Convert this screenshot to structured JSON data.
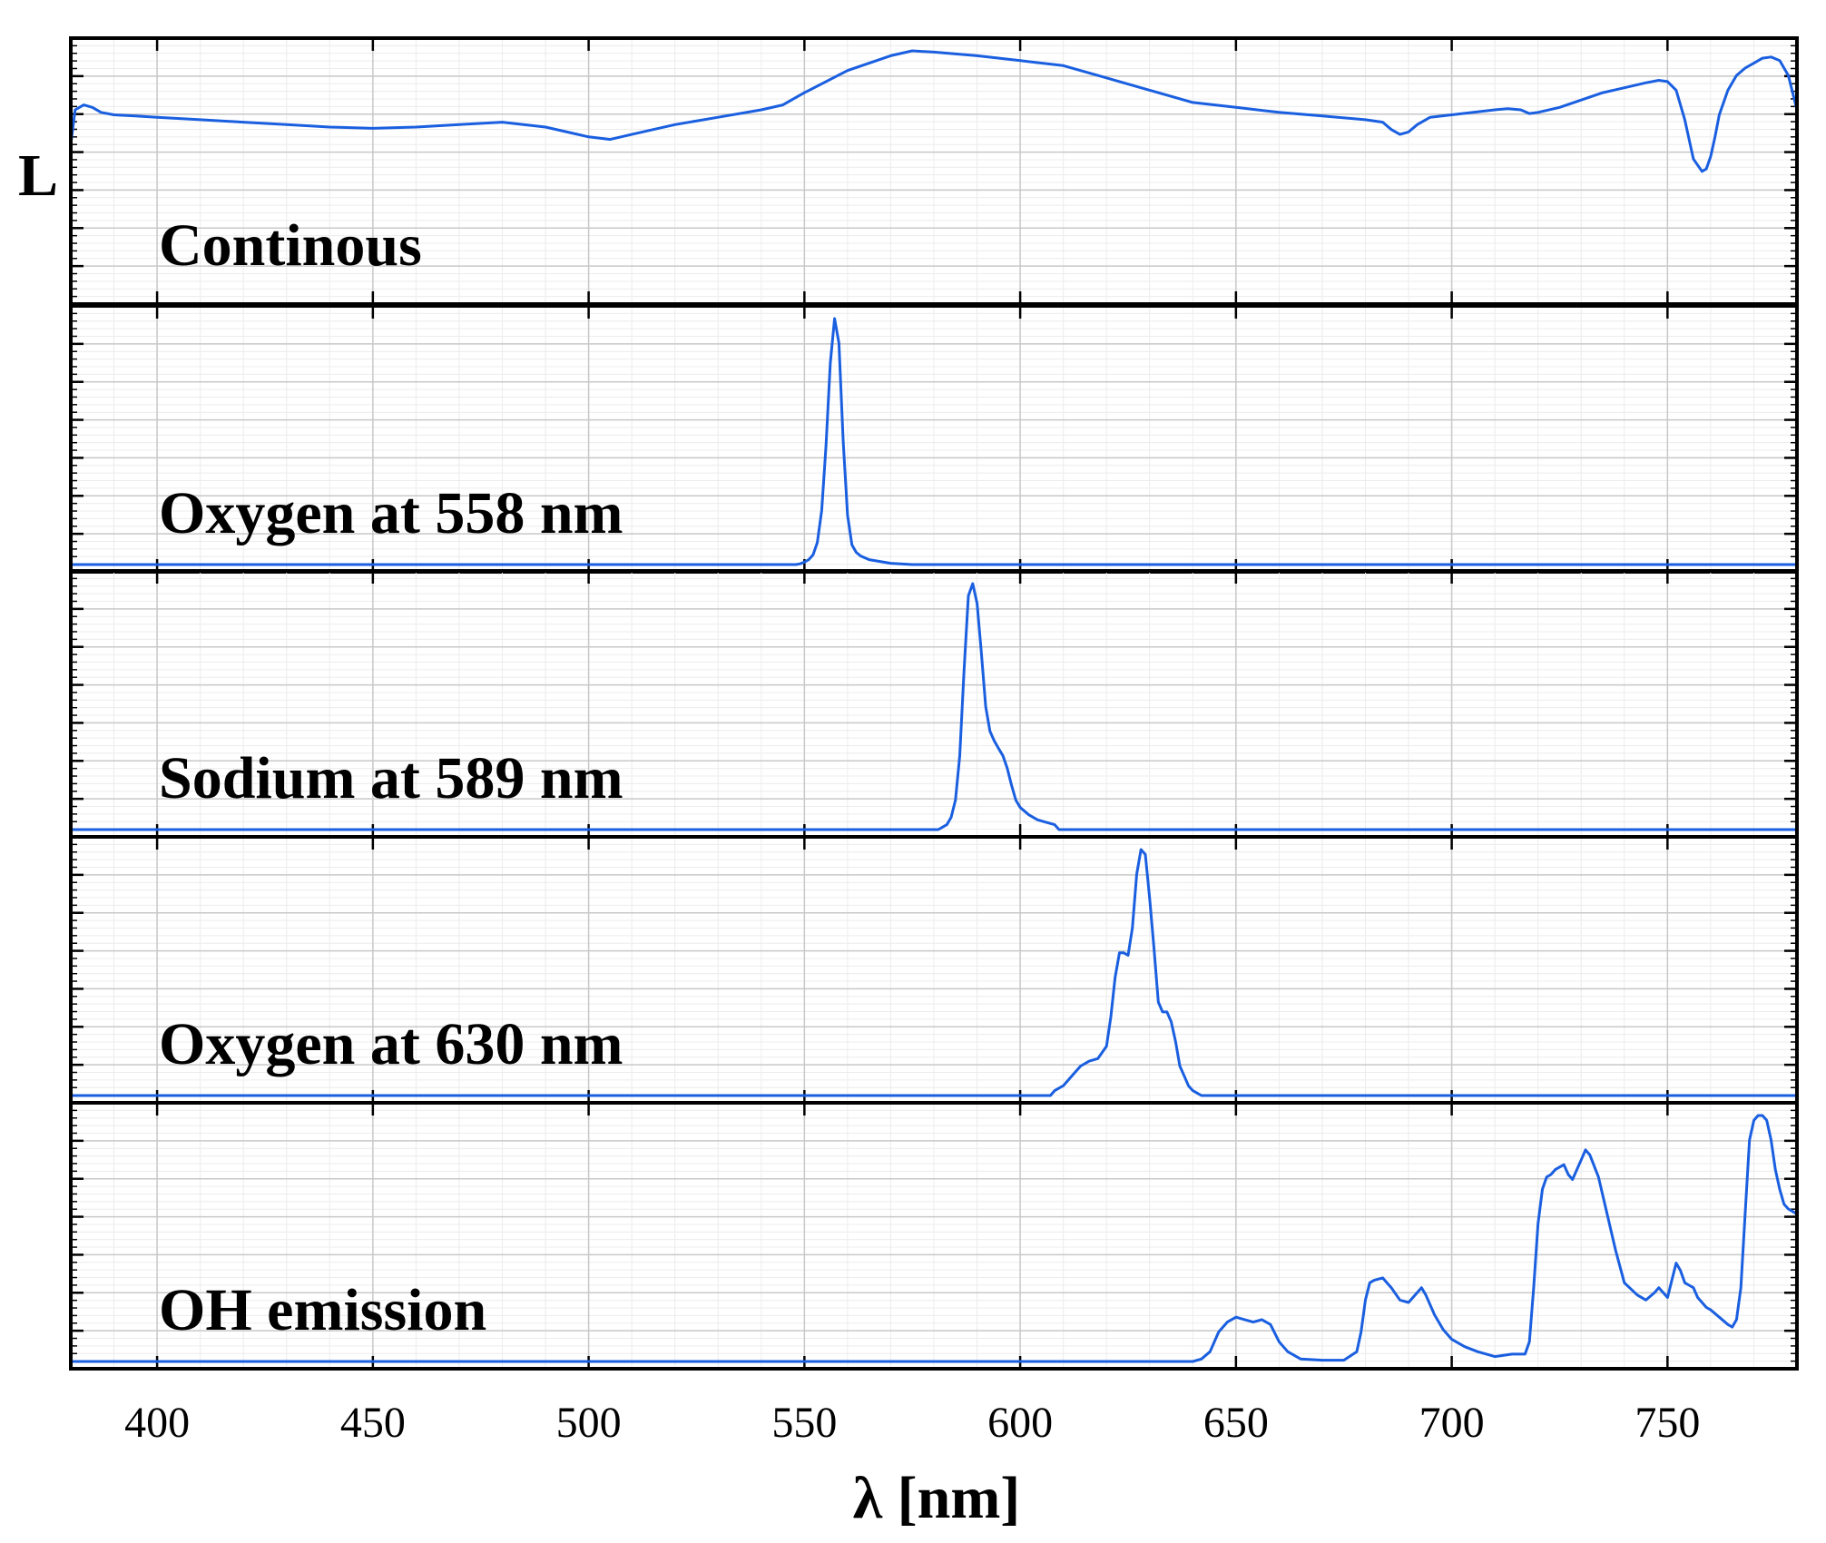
{
  "chart_data": {
    "type": "line",
    "xlabel": "λ [nm]",
    "ylabel": "L",
    "xlim": [
      380,
      780
    ],
    "ylim": [
      0,
      1
    ],
    "xticks": [
      400,
      450,
      500,
      550,
      600,
      650,
      700,
      750
    ],
    "x_tick_labels": [
      "400",
      "450",
      "500",
      "550",
      "600",
      "650",
      "700",
      "750"
    ],
    "grid": true,
    "line_color": "#1a5fe0",
    "panels": [
      {
        "label": "Continous",
        "x": [
          380,
          381,
          383,
          385,
          387,
          390,
          395,
          400,
          410,
          420,
          430,
          440,
          450,
          460,
          470,
          480,
          490,
          500,
          505,
          510,
          515,
          520,
          530,
          540,
          545,
          550,
          560,
          570,
          575,
          580,
          590,
          600,
          610,
          620,
          630,
          640,
          650,
          660,
          670,
          680,
          684,
          686,
          688,
          690,
          692,
          695,
          700,
          705,
          710,
          713,
          716,
          718,
          720,
          725,
          730,
          735,
          740,
          745,
          748,
          750,
          752,
          754,
          756,
          758,
          759,
          760,
          761,
          762,
          764,
          766,
          768,
          770,
          772,
          774,
          776,
          778,
          780
        ],
        "y": [
          0.62,
          0.76,
          0.78,
          0.77,
          0.75,
          0.74,
          0.735,
          0.73,
          0.72,
          0.71,
          0.7,
          0.69,
          0.685,
          0.69,
          0.7,
          0.71,
          0.69,
          0.65,
          0.64,
          0.66,
          0.68,
          0.7,
          0.73,
          0.76,
          0.78,
          0.83,
          0.92,
          0.98,
          1.0,
          0.995,
          0.98,
          0.96,
          0.94,
          0.89,
          0.84,
          0.79,
          0.77,
          0.75,
          0.735,
          0.72,
          0.71,
          0.68,
          0.66,
          0.67,
          0.7,
          0.73,
          0.74,
          0.75,
          0.76,
          0.765,
          0.76,
          0.745,
          0.75,
          0.77,
          0.8,
          0.83,
          0.85,
          0.87,
          0.88,
          0.875,
          0.84,
          0.72,
          0.56,
          0.51,
          0.52,
          0.57,
          0.65,
          0.74,
          0.84,
          0.9,
          0.93,
          0.95,
          0.97,
          0.975,
          0.96,
          0.9,
          0.76
        ]
      },
      {
        "label": "Oxygen at 558 nm",
        "x": [
          380,
          548,
          549,
          550,
          551,
          552,
          553,
          554,
          555,
          556,
          557,
          558,
          559,
          560,
          561,
          562,
          563,
          565,
          570,
          575,
          780
        ],
        "y": [
          0,
          0.0,
          0.003,
          0.01,
          0.02,
          0.04,
          0.09,
          0.22,
          0.48,
          0.82,
          1.0,
          0.9,
          0.5,
          0.2,
          0.08,
          0.05,
          0.035,
          0.02,
          0.005,
          0.0,
          0
        ]
      },
      {
        "label": "Sodium at 589 nm",
        "x": [
          380,
          581,
          582,
          583,
          584,
          585,
          586,
          587,
          588,
          589,
          590,
          591,
          592,
          593,
          594,
          595,
          596,
          597,
          598,
          599,
          600,
          602,
          604,
          606,
          608,
          609,
          780
        ],
        "y": [
          0,
          0.0,
          0.01,
          0.02,
          0.05,
          0.12,
          0.3,
          0.65,
          0.95,
          1.0,
          0.92,
          0.72,
          0.5,
          0.4,
          0.36,
          0.33,
          0.3,
          0.25,
          0.18,
          0.12,
          0.09,
          0.06,
          0.04,
          0.03,
          0.02,
          0.0,
          0
        ]
      },
      {
        "label": "Oxygen at 630 nm",
        "x": [
          380,
          607,
          608,
          610,
          612,
          614,
          616,
          618,
          620,
          621,
          622,
          623,
          624,
          625,
          626,
          627,
          628,
          629,
          630,
          631,
          632,
          633,
          634,
          635,
          636,
          637,
          638,
          639,
          640,
          641,
          642,
          780
        ],
        "y": [
          0,
          0.0,
          0.02,
          0.04,
          0.08,
          0.12,
          0.14,
          0.15,
          0.2,
          0.32,
          0.48,
          0.58,
          0.58,
          0.57,
          0.68,
          0.9,
          1.0,
          0.98,
          0.8,
          0.6,
          0.38,
          0.34,
          0.34,
          0.3,
          0.22,
          0.12,
          0.08,
          0.04,
          0.02,
          0.01,
          0.0,
          0
        ]
      },
      {
        "label": "OH emission",
        "x": [
          380,
          640,
          642,
          644,
          646,
          648,
          650,
          652,
          654,
          656,
          658,
          660,
          662,
          665,
          670,
          675,
          678,
          679,
          680,
          681,
          682,
          684,
          686,
          688,
          690,
          692,
          693,
          694,
          696,
          698,
          700,
          703,
          706,
          710,
          714,
          717,
          718,
          719,
          720,
          721,
          722,
          723,
          724,
          726,
          727,
          728,
          730,
          731,
          732,
          734,
          736,
          738,
          740,
          743,
          745,
          747,
          748,
          750,
          751,
          752,
          753,
          754,
          755,
          756,
          757,
          759,
          760,
          762,
          764,
          765,
          766,
          767,
          768,
          769,
          770,
          771,
          772,
          773,
          774,
          775,
          776,
          777,
          778,
          779,
          780
        ],
        "y": [
          0,
          0.0,
          0.01,
          0.04,
          0.12,
          0.16,
          0.18,
          0.17,
          0.16,
          0.17,
          0.15,
          0.08,
          0.04,
          0.01,
          0.005,
          0.005,
          0.04,
          0.12,
          0.25,
          0.32,
          0.33,
          0.34,
          0.3,
          0.25,
          0.24,
          0.28,
          0.3,
          0.27,
          0.19,
          0.13,
          0.09,
          0.06,
          0.04,
          0.02,
          0.03,
          0.03,
          0.08,
          0.3,
          0.56,
          0.7,
          0.75,
          0.76,
          0.78,
          0.8,
          0.76,
          0.74,
          0.82,
          0.86,
          0.84,
          0.75,
          0.6,
          0.45,
          0.32,
          0.27,
          0.25,
          0.28,
          0.3,
          0.26,
          0.33,
          0.4,
          0.37,
          0.32,
          0.31,
          0.3,
          0.26,
          0.22,
          0.21,
          0.18,
          0.15,
          0.14,
          0.17,
          0.3,
          0.6,
          0.9,
          0.98,
          1.0,
          1.0,
          0.98,
          0.9,
          0.78,
          0.7,
          0.64,
          0.62,
          0.61,
          0.6
        ]
      }
    ]
  }
}
